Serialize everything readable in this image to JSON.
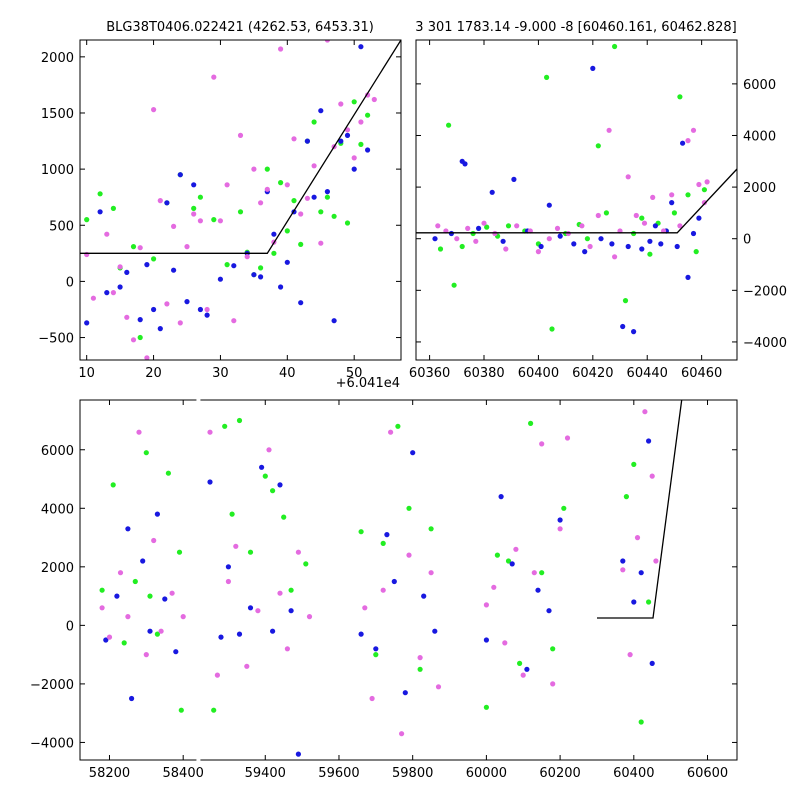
{
  "figure": {
    "background": "#ffffff",
    "colors": {
      "green": "#22ee22",
      "blue": "#1818e0",
      "pink": "#e46be0",
      "model": "#000000"
    }
  },
  "chart_data": [
    {
      "type": "scatter",
      "title": "BLG38T0406.022421 (4262.53, 6453.31)",
      "xlim": [
        9,
        57
      ],
      "ylim": [
        -700,
        2150
      ],
      "xticks": [
        10,
        20,
        30,
        40,
        50
      ],
      "xticklabels": [
        "10",
        "20",
        "30",
        "40",
        "50"
      ],
      "yticks": [
        -500,
        0,
        500,
        1000,
        1500,
        2000
      ],
      "yticklabels": [
        "−500",
        "0",
        "500",
        "1000",
        "1500",
        "2000"
      ],
      "offset_text": "+6.041e4",
      "ytick_side": "left",
      "series": [
        {
          "color": "green",
          "x": [
            10,
            12,
            14,
            15,
            17,
            18,
            20,
            22,
            24,
            26,
            27,
            29,
            31,
            33,
            34,
            35,
            36,
            37,
            38,
            39,
            40,
            41,
            42,
            43,
            44,
            45,
            46,
            47,
            48,
            49,
            50,
            51,
            52
          ],
          "y": [
            550,
            780,
            650,
            120,
            310,
            -500,
            200,
            700,
            950,
            650,
            750,
            550,
            150,
            620,
            260,
            60,
            120,
            1000,
            250,
            880,
            450,
            720,
            330,
            1250,
            1420,
            620,
            750,
            580,
            1230,
            520,
            1600,
            1220,
            1480
          ]
        },
        {
          "color": "blue",
          "x": [
            10,
            12,
            13,
            15,
            16,
            18,
            19,
            20,
            21,
            22,
            23,
            24,
            25,
            26,
            27,
            28,
            30,
            32,
            34,
            35,
            36,
            37,
            38,
            39,
            40,
            41,
            42,
            43,
            44,
            45,
            46,
            47,
            48,
            49,
            50,
            51,
            52
          ],
          "y": [
            -370,
            620,
            -100,
            -50,
            80,
            -340,
            150,
            -250,
            -420,
            700,
            100,
            950,
            -180,
            860,
            -250,
            -300,
            20,
            140,
            250,
            60,
            40,
            800,
            420,
            -50,
            170,
            620,
            -190,
            1250,
            750,
            1520,
            800,
            -350,
            1250,
            1300,
            1000,
            2090,
            1170
          ]
        },
        {
          "color": "pink",
          "x": [
            10,
            11,
            13,
            14,
            15,
            16,
            17,
            18,
            19,
            20,
            21,
            22,
            23,
            24,
            25,
            26,
            27,
            28,
            29,
            30,
            31,
            32,
            33,
            34,
            35,
            36,
            37,
            38,
            39,
            40,
            41,
            42,
            43,
            44,
            45,
            46,
            47,
            48,
            49,
            50,
            51,
            52,
            53
          ],
          "y": [
            240,
            -150,
            420,
            -100,
            130,
            -320,
            -520,
            300,
            -680,
            1530,
            720,
            -200,
            490,
            -370,
            310,
            600,
            540,
            -250,
            1820,
            540,
            860,
            -350,
            1300,
            220,
            1000,
            700,
            820,
            350,
            2070,
            860,
            1270,
            600,
            740,
            1030,
            340,
            2150,
            1200,
            1580,
            1350,
            1100,
            1420,
            1660,
            1620
          ]
        }
      ],
      "model": {
        "x": [
          9,
          37,
          57
        ],
        "y": [
          250,
          250,
          2150
        ]
      }
    },
    {
      "type": "scatter",
      "title": "3 301 1783.14 -9.000 -8 [60460.161, 60462.828]",
      "xlim": [
        60355,
        60473
      ],
      "ylim": [
        -4700,
        7700
      ],
      "xticks": [
        60360,
        60380,
        60400,
        60420,
        60440,
        60460
      ],
      "xticklabels": [
        "60360",
        "60380",
        "60400",
        "60420",
        "60440",
        "60460"
      ],
      "yticks": [
        -4000,
        -2000,
        0,
        2000,
        4000,
        6000
      ],
      "yticklabels": [
        "−4000",
        "−2000",
        "0",
        "2000",
        "4000",
        "6000"
      ],
      "ytick_side": "right",
      "series": [
        {
          "color": "green",
          "x": [
            60364,
            60367,
            60369,
            60372,
            60376,
            60381,
            60385,
            60389,
            60395,
            60400,
            60403,
            60405,
            60410,
            60415,
            60418,
            60422,
            60425,
            60428,
            60432,
            60435,
            60438,
            60441,
            60444,
            60447,
            60450,
            60452,
            60455,
            60458,
            60461
          ],
          "y": [
            -400,
            4400,
            -1800,
            -300,
            200,
            450,
            100,
            500,
            300,
            -200,
            6250,
            -3500,
            200,
            550,
            0,
            3600,
            1000,
            7450,
            -2400,
            200,
            800,
            -600,
            600,
            300,
            1000,
            5500,
            1700,
            -500,
            1900
          ]
        },
        {
          "color": "blue",
          "x": [
            60362,
            60368,
            60372,
            60373,
            60378,
            60383,
            60387,
            60391,
            60396,
            60401,
            60404,
            60408,
            60413,
            60417,
            60420,
            60423,
            60427,
            60431,
            60433,
            60435,
            60438,
            60441,
            60443,
            60445,
            60447,
            60449,
            60451,
            60453,
            60455,
            60457,
            60459
          ],
          "y": [
            0,
            200,
            3000,
            2900,
            400,
            1800,
            -100,
            2300,
            300,
            -300,
            1300,
            100,
            -200,
            -500,
            6600,
            0,
            -200,
            -3400,
            -300,
            -3600,
            -400,
            -100,
            500,
            -200,
            300,
            1400,
            -300,
            3700,
            -1500,
            200,
            800
          ]
        },
        {
          "color": "pink",
          "x": [
            60363,
            60366,
            60370,
            60374,
            60377,
            60380,
            60384,
            60388,
            60392,
            60397,
            60400,
            60404,
            60407,
            60411,
            60416,
            60419,
            60422,
            60426,
            60428,
            60430,
            60433,
            60436,
            60439,
            60442,
            60446,
            60449,
            60452,
            60455,
            60457,
            60459,
            60461,
            60462
          ],
          "y": [
            500,
            300,
            0,
            400,
            -100,
            600,
            200,
            -400,
            500,
            300,
            -500,
            0,
            400,
            200,
            500,
            -300,
            900,
            4200,
            -700,
            300,
            2400,
            900,
            600,
            1600,
            300,
            1700,
            500,
            3800,
            4200,
            2100,
            1400,
            2200
          ]
        }
      ],
      "model": {
        "x": [
          60355,
          60451,
          60473
        ],
        "y": [
          230,
          230,
          2700
        ]
      }
    },
    {
      "type": "scatter",
      "title": "",
      "xlim": [
        58120,
        60680
      ],
      "ylim": [
        -4600,
        7700
      ],
      "xticks": [
        58200,
        58400,
        59400,
        59600,
        59800,
        60000,
        60200,
        60400,
        60600
      ],
      "xticklabels": [
        "58200",
        "58400",
        "59400",
        "59600",
        "59800",
        "60000",
        "60200",
        "60400",
        "60600"
      ],
      "yticks": [
        -4000,
        -2000,
        0,
        2000,
        4000,
        6000
      ],
      "yticklabels": [
        "−4000",
        "−2000",
        "0",
        "2000",
        "4000",
        "6000"
      ],
      "ytick_side": "left",
      "seasons": [
        [
          58160,
          58420
        ],
        [
          59230,
          59530
        ],
        [
          59650,
          59890
        ],
        [
          59980,
          60240
        ],
        [
          60360,
          60480
        ]
      ],
      "series": [
        {
          "color": "green",
          "x": [
            58180,
            58210,
            58240,
            58270,
            58300,
            58310,
            58330,
            58360,
            58390,
            58395,
            59260,
            59290,
            59310,
            59330,
            59360,
            59400,
            59420,
            59450,
            59470,
            59510,
            59660,
            59700,
            59720,
            59760,
            59790,
            59820,
            59850,
            60000,
            60030,
            60060,
            60090,
            60120,
            60150,
            60180,
            60210,
            60380,
            60400,
            60420,
            60440
          ],
          "y": [
            1200,
            4800,
            -600,
            1500,
            5900,
            1000,
            -300,
            5200,
            2500,
            -2900,
            -2900,
            6800,
            3800,
            7000,
            2500,
            5100,
            4600,
            3700,
            1200,
            2100,
            3200,
            -1000,
            2800,
            6800,
            4000,
            -1500,
            3300,
            -2800,
            2400,
            2200,
            -1300,
            6900,
            1800,
            -800,
            4000,
            4400,
            5500,
            -3300,
            800
          ]
        },
        {
          "color": "blue",
          "x": [
            58190,
            58220,
            58250,
            58260,
            58290,
            58310,
            58330,
            58350,
            58380,
            59250,
            59280,
            59300,
            59330,
            59360,
            59390,
            59420,
            59440,
            59470,
            59490,
            59660,
            59700,
            59730,
            59750,
            59780,
            59800,
            59830,
            59860,
            60000,
            60040,
            60070,
            60110,
            60140,
            60170,
            60200,
            60370,
            60400,
            60420,
            60440,
            60450
          ],
          "y": [
            -500,
            1000,
            3300,
            -2500,
            2200,
            -200,
            3800,
            900,
            -900,
            4900,
            -400,
            2000,
            -300,
            600,
            5400,
            -200,
            4800,
            500,
            -4400,
            -300,
            -800,
            3100,
            1500,
            -2300,
            5900,
            1000,
            -200,
            -500,
            4400,
            2100,
            -1500,
            1200,
            500,
            3600,
            2200,
            800,
            1800,
            6300,
            -1300
          ]
        },
        {
          "color": "pink",
          "x": [
            58180,
            58200,
            58230,
            58250,
            58280,
            58300,
            58320,
            58340,
            58370,
            58400,
            59250,
            59270,
            59300,
            59320,
            59350,
            59380,
            59410,
            59440,
            59460,
            59490,
            59520,
            59670,
            59690,
            59720,
            59740,
            59770,
            59790,
            59820,
            59850,
            59870,
            60000,
            60020,
            60050,
            60080,
            60100,
            60130,
            60150,
            60180,
            60200,
            60220,
            60370,
            60390,
            60410,
            60430,
            60450,
            60460
          ],
          "y": [
            600,
            -400,
            1800,
            300,
            6600,
            -1000,
            2900,
            -200,
            1100,
            300,
            6600,
            -1700,
            1500,
            2700,
            -1400,
            500,
            6000,
            1100,
            -800,
            2500,
            300,
            600,
            -2500,
            1200,
            6600,
            -3700,
            2400,
            -1100,
            1800,
            -2100,
            700,
            1300,
            -600,
            2600,
            -1700,
            1800,
            6200,
            -2000,
            3300,
            6400,
            1900,
            -1000,
            3000,
            7300,
            5100,
            2200
          ]
        }
      ],
      "model": {
        "x": [
          60300,
          60452,
          60530
        ],
        "y": [
          250,
          250,
          7700
        ]
      }
    }
  ]
}
